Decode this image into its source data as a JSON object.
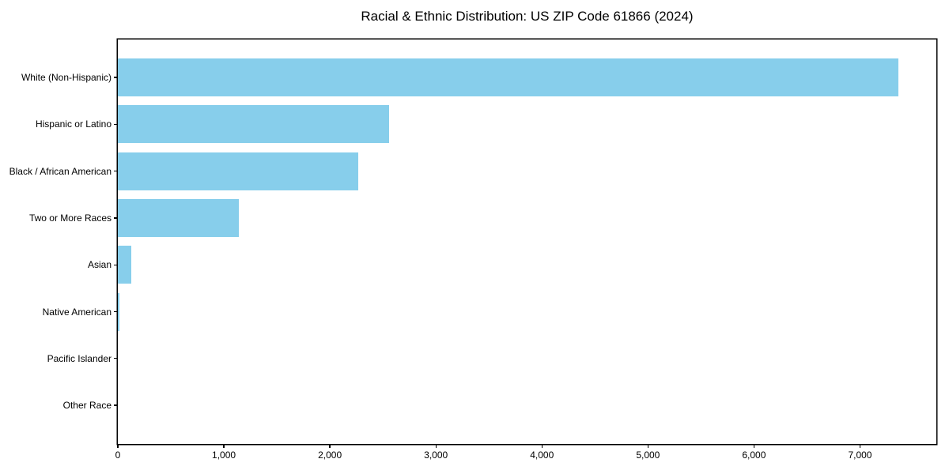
{
  "chart_data": {
    "type": "bar",
    "orientation": "horizontal",
    "title": "Racial & Ethnic Distribution: US ZIP Code 61866 (2024)",
    "categories": [
      "White (Non-Hispanic)",
      "Hispanic or Latino",
      "Black / African American",
      "Two or More Races",
      "Asian",
      "Native American",
      "Pacific Islander",
      "Other Race"
    ],
    "values": [
      7360,
      2560,
      2270,
      1140,
      130,
      15,
      0,
      0
    ],
    "xlabel": "",
    "ylabel": "",
    "xlim": [
      0,
      7720
    ],
    "x_ticks": [
      0,
      1000,
      2000,
      3000,
      4000,
      5000,
      6000,
      7000
    ],
    "x_tick_labels": [
      "0",
      "1,000",
      "2,000",
      "3,000",
      "4,000",
      "5,000",
      "6,000",
      "7,000"
    ],
    "bar_color": "#87CEEB",
    "text_color": "#000000",
    "axis_color": "#000000",
    "background": "#ffffff",
    "grid": false,
    "legend": "none"
  }
}
